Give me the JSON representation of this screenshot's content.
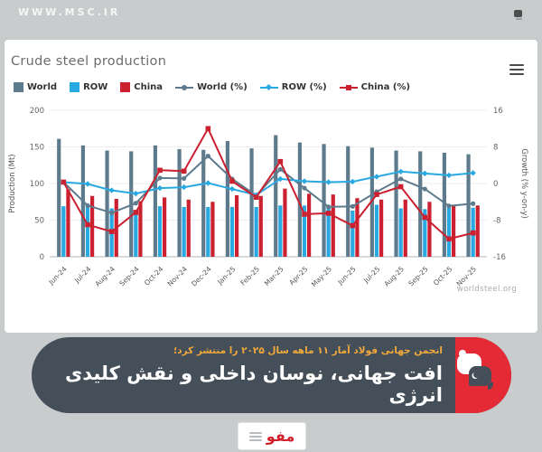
{
  "watermark": "WWW.MSC.IR",
  "card": {
    "title": "Crude steel production",
    "source": "worldsteel.org"
  },
  "chart_data": {
    "type": "bar+line",
    "title": "Crude steel production",
    "categories": [
      "Jun-24",
      "Jul-24",
      "Aug-24",
      "Sep-24",
      "Oct-24",
      "Nov-24",
      "Dec-24",
      "Jan-25",
      "Feb-25",
      "Mar-25",
      "Apr-25",
      "May-25",
      "Jun-25",
      "Jul-25",
      "Aug-25",
      "Sep-25",
      "Oct-25",
      "Nov-25"
    ],
    "bar_series": [
      {
        "name": "World",
        "color": "#5d7b8c",
        "axis": "left",
        "values": [
          161,
          152,
          145,
          144,
          152,
          147,
          146,
          158,
          148,
          166,
          156,
          154,
          151,
          149,
          145,
          144,
          142,
          140
        ]
      },
      {
        "name": "ROW",
        "color": "#29a9e1",
        "axis": "left",
        "values": [
          69,
          68,
          66,
          63,
          69,
          68,
          68,
          68,
          68,
          70,
          70,
          68,
          63,
          71,
          66,
          65,
          67,
          67
        ]
      },
      {
        "name": "China",
        "color": "#cb2030",
        "axis": "left",
        "values": [
          92,
          83,
          79,
          76,
          81,
          78,
          75,
          84,
          83,
          93,
          86,
          85,
          80,
          78,
          78,
          75,
          71,
          70
        ]
      }
    ],
    "line_series": [
      {
        "name": "World (%)",
        "color": "#5d7b8c",
        "marker": "circle",
        "axis": "right",
        "values": [
          0.3,
          -4.8,
          -6.4,
          -4.3,
          1.2,
          1.1,
          6.0,
          1.0,
          -2.6,
          3.1,
          -1.0,
          -5.1,
          -5.0,
          -1.8,
          1.0,
          -1.2,
          -4.9,
          -4.4
        ]
      },
      {
        "name": "ROW (%)",
        "color": "#29a9e1",
        "marker": "diamond",
        "axis": "right",
        "values": [
          0.3,
          -0.1,
          -1.5,
          -2.2,
          -1.0,
          -0.8,
          0.1,
          -1.2,
          -2.5,
          1.0,
          0.5,
          0.3,
          0.4,
          1.5,
          2.6,
          2.2,
          1.8,
          2.3
        ]
      },
      {
        "name": "China (%)",
        "color": "#cb2030",
        "marker": "square",
        "axis": "right",
        "values": [
          0.3,
          -9.0,
          -10.5,
          -6.3,
          2.9,
          2.7,
          12.0,
          0.5,
          -3.0,
          4.8,
          -6.7,
          -6.5,
          -9.2,
          -2.4,
          -0.7,
          -7.4,
          -12.1,
          -10.8
        ]
      }
    ],
    "left_axis": {
      "label": "Production (Mt)",
      "ticks": [
        0,
        50,
        100,
        150,
        200
      ],
      "range": [
        0,
        200
      ]
    },
    "right_axis": {
      "label": "Growth (% y-on-y)",
      "ticks": [
        16,
        8,
        0,
        -8,
        -16
      ],
      "range": [
        -16,
        16
      ]
    },
    "grid": true,
    "legend_position": "top",
    "source": "worldsteel.org"
  },
  "banner": {
    "subtitle": "انجمن جهانی فولاد آمار ۱۱ ماهه سال ۲۰۲۵ را منتشر کرد؛",
    "headline": "افت جهانی، نوسان داخلی و نقش کلیدی انرژی",
    "colors": {
      "dark": "#454f59",
      "red": "#e42a34",
      "subtitle": "#f2a93b",
      "headline": "#ffffff"
    }
  },
  "footer_logo": {
    "text": "مفو"
  }
}
